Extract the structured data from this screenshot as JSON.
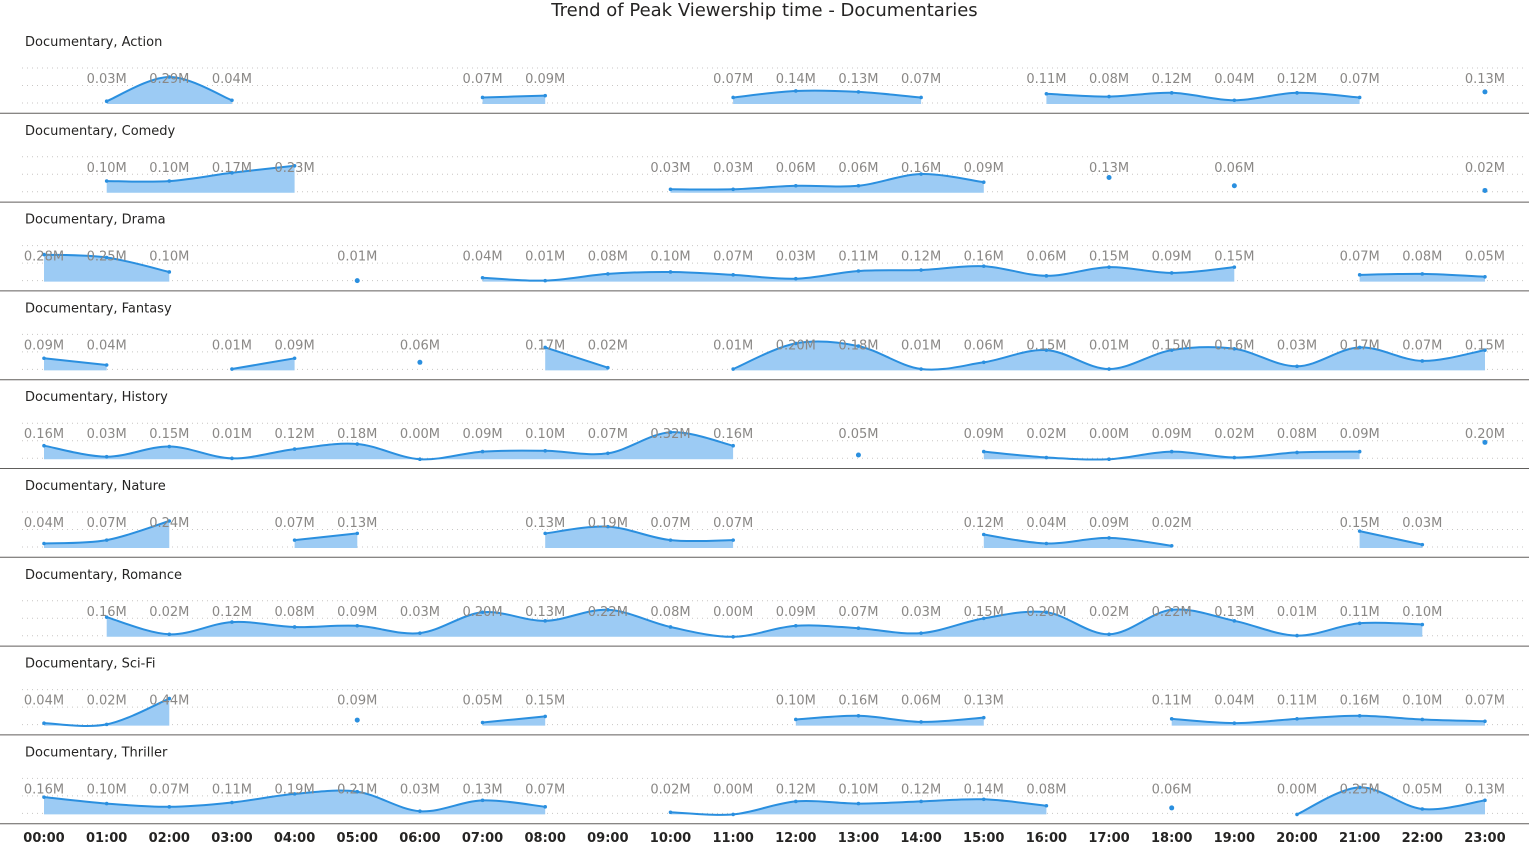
{
  "chart_data": {
    "type": "area",
    "title": "Trend of Peak Viewership time - Documentaries",
    "x_categories": [
      "00:00",
      "01:00",
      "02:00",
      "03:00",
      "04:00",
      "05:00",
      "06:00",
      "07:00",
      "08:00",
      "09:00",
      "10:00",
      "11:00",
      "12:00",
      "13:00",
      "14:00",
      "15:00",
      "16:00",
      "17:00",
      "18:00",
      "19:00",
      "20:00",
      "21:00",
      "22:00",
      "23:00"
    ],
    "unit": "M",
    "grid": true,
    "colors": {
      "line": "#2a8fdf",
      "fill": "#9ccbf4",
      "label": "#8a8886"
    },
    "series": [
      {
        "name": "Documentary, Action",
        "values": [
          null,
          0.03,
          0.29,
          0.04,
          null,
          null,
          null,
          0.07,
          0.09,
          null,
          null,
          0.07,
          0.14,
          0.13,
          0.07,
          null,
          0.11,
          0.08,
          0.12,
          0.04,
          0.12,
          0.07,
          null,
          0.13
        ]
      },
      {
        "name": "Documentary, Comedy",
        "values": [
          null,
          0.1,
          0.1,
          0.17,
          0.23,
          null,
          null,
          null,
          null,
          null,
          0.03,
          0.03,
          0.06,
          0.06,
          0.16,
          0.09,
          null,
          0.13,
          null,
          0.06,
          null,
          null,
          null,
          0.02
        ]
      },
      {
        "name": "Documentary, Drama",
        "values": [
          0.28,
          0.25,
          0.1,
          null,
          null,
          0.01,
          null,
          0.04,
          0.01,
          0.08,
          0.1,
          0.07,
          0.03,
          0.11,
          0.12,
          0.16,
          0.06,
          0.15,
          0.09,
          0.15,
          null,
          0.07,
          0.08,
          0.05
        ]
      },
      {
        "name": "Documentary, Fantasy",
        "values": [
          0.09,
          0.04,
          null,
          0.01,
          0.09,
          null,
          0.06,
          null,
          0.17,
          0.02,
          null,
          0.01,
          0.2,
          0.18,
          0.01,
          0.06,
          0.15,
          0.01,
          0.15,
          0.16,
          0.03,
          0.17,
          0.07,
          0.15
        ]
      },
      {
        "name": "Documentary, History",
        "values": [
          0.16,
          0.03,
          0.15,
          0.01,
          0.12,
          0.18,
          0.0,
          0.09,
          0.1,
          0.07,
          0.32,
          0.16,
          null,
          0.05,
          null,
          0.09,
          0.02,
          0.0,
          0.09,
          0.02,
          0.08,
          0.09,
          null,
          0.2
        ]
      },
      {
        "name": "Documentary, Nature",
        "values": [
          0.04,
          0.07,
          0.24,
          null,
          0.07,
          0.13,
          null,
          null,
          0.13,
          0.19,
          0.07,
          0.07,
          null,
          null,
          null,
          0.12,
          0.04,
          0.09,
          0.02,
          null,
          null,
          0.15,
          0.03,
          null
        ]
      },
      {
        "name": "Documentary, Romance",
        "values": [
          null,
          0.16,
          0.02,
          0.12,
          0.08,
          0.09,
          0.03,
          0.2,
          0.13,
          0.22,
          0.08,
          0.0,
          0.09,
          0.07,
          0.03,
          0.15,
          0.2,
          0.02,
          0.22,
          0.13,
          0.01,
          0.11,
          0.1,
          null
        ]
      },
      {
        "name": "Documentary, Sci-Fi",
        "values": [
          0.04,
          0.02,
          0.44,
          null,
          null,
          0.09,
          null,
          0.05,
          0.15,
          null,
          null,
          null,
          0.1,
          0.16,
          0.06,
          0.13,
          null,
          null,
          0.11,
          0.04,
          0.11,
          0.16,
          0.1,
          0.07
        ]
      },
      {
        "name": "Documentary, Thriller",
        "values": [
          0.16,
          0.1,
          0.07,
          0.11,
          0.19,
          0.21,
          0.03,
          0.13,
          0.07,
          null,
          0.02,
          0.0,
          0.12,
          0.1,
          0.12,
          0.14,
          0.08,
          null,
          0.06,
          null,
          0.0,
          0.25,
          0.05,
          0.13
        ]
      }
    ]
  }
}
